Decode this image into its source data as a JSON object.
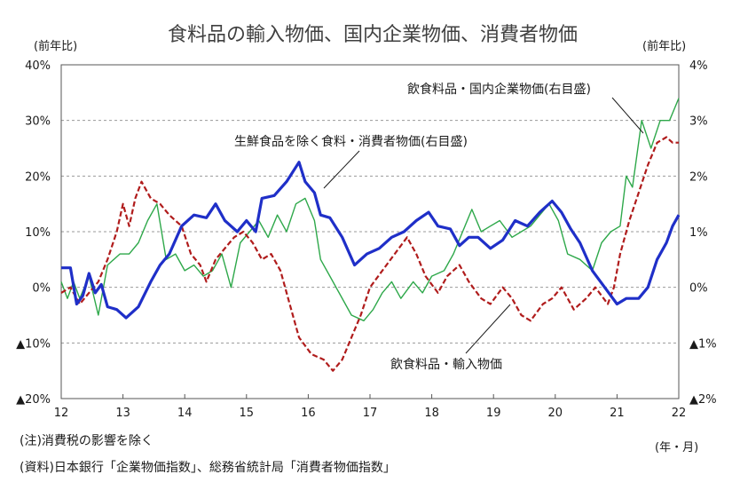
{
  "chart_data": {
    "type": "line",
    "title": "食料品の輸入物価、国内企業物価、消費者物価",
    "left_axis_unit": "(前年比)",
    "right_axis_unit": "(前年比)",
    "x_axis_unit": "(年・月)",
    "xlim": [
      2012.0,
      2022.0
    ],
    "ylim_left": [
      -20,
      40
    ],
    "ylim_right": [
      -2,
      4
    ],
    "x_ticks": [
      {
        "value": 2012,
        "label": "12"
      },
      {
        "value": 2013,
        "label": "13"
      },
      {
        "value": 2014,
        "label": "14"
      },
      {
        "value": 2015,
        "label": "15"
      },
      {
        "value": 2016,
        "label": "16"
      },
      {
        "value": 2017,
        "label": "17"
      },
      {
        "value": 2018,
        "label": "18"
      },
      {
        "value": 2019,
        "label": "19"
      },
      {
        "value": 2020,
        "label": "20"
      },
      {
        "value": 2021,
        "label": "21"
      },
      {
        "value": 2022,
        "label": "22"
      }
    ],
    "y_ticks_left": [
      {
        "value": 40,
        "label": "40%"
      },
      {
        "value": 30,
        "label": "30%"
      },
      {
        "value": 20,
        "label": "20%"
      },
      {
        "value": 10,
        "label": "10%"
      },
      {
        "value": 0,
        "label": "0%"
      },
      {
        "value": -10,
        "label": "▲10%"
      },
      {
        "value": -20,
        "label": "▲20%"
      }
    ],
    "y_ticks_right": [
      {
        "value": 4,
        "label": "4%"
      },
      {
        "value": 3,
        "label": "3%"
      },
      {
        "value": 2,
        "label": "2%"
      },
      {
        "value": 1,
        "label": "1%"
      },
      {
        "value": 0,
        "label": "0%"
      },
      {
        "value": -1,
        "label": "▲1%"
      },
      {
        "value": -2,
        "label": "▲2%"
      }
    ],
    "grid": "horizontal dashed",
    "series": [
      {
        "name": "飲食料品・輸入物価",
        "axis": "left",
        "color": "#1f2fc8",
        "style": "solid-thick",
        "points": [
          [
            2012.0,
            3.5
          ],
          [
            2012.15,
            3.5
          ],
          [
            2012.25,
            -3.0
          ],
          [
            2012.35,
            -1.5
          ],
          [
            2012.45,
            2.5
          ],
          [
            2012.55,
            -1.0
          ],
          [
            2012.65,
            0.5
          ],
          [
            2012.75,
            -3.5
          ],
          [
            2012.9,
            -4.0
          ],
          [
            2013.05,
            -5.5
          ],
          [
            2013.25,
            -3.5
          ],
          [
            2013.45,
            1.0
          ],
          [
            2013.6,
            4.0
          ],
          [
            2013.75,
            6.0
          ],
          [
            2013.95,
            11.0
          ],
          [
            2014.15,
            13.0
          ],
          [
            2014.35,
            12.5
          ],
          [
            2014.5,
            15.0
          ],
          [
            2014.65,
            12.0
          ],
          [
            2014.85,
            10.0
          ],
          [
            2015.0,
            12.0
          ],
          [
            2015.15,
            10.0
          ],
          [
            2015.25,
            16.0
          ],
          [
            2015.45,
            16.5
          ],
          [
            2015.65,
            19.0
          ],
          [
            2015.85,
            22.5
          ],
          [
            2015.95,
            19.0
          ],
          [
            2016.1,
            17.0
          ],
          [
            2016.2,
            13.0
          ],
          [
            2016.35,
            12.5
          ],
          [
            2016.55,
            9.0
          ],
          [
            2016.75,
            4.0
          ],
          [
            2016.95,
            6.0
          ],
          [
            2017.15,
            7.0
          ],
          [
            2017.35,
            9.0
          ],
          [
            2017.55,
            10.0
          ],
          [
            2017.75,
            12.0
          ],
          [
            2017.95,
            13.5
          ],
          [
            2018.1,
            11.0
          ],
          [
            2018.3,
            10.5
          ],
          [
            2018.45,
            7.5
          ],
          [
            2018.6,
            9.0
          ],
          [
            2018.75,
            9.0
          ],
          [
            2018.95,
            7.0
          ],
          [
            2019.15,
            8.5
          ],
          [
            2019.35,
            12.0
          ],
          [
            2019.55,
            11.0
          ],
          [
            2019.75,
            13.5
          ],
          [
            2019.95,
            15.5
          ],
          [
            2020.1,
            13.5
          ],
          [
            2020.25,
            10.5
          ],
          [
            2020.4,
            8.0
          ],
          [
            2020.6,
            3.0
          ],
          [
            2020.8,
            0.0
          ],
          [
            2021.0,
            -3.0
          ],
          [
            2021.15,
            -2.0
          ],
          [
            2021.35,
            -2.0
          ],
          [
            2021.5,
            0.0
          ],
          [
            2021.65,
            5.0
          ],
          [
            2021.8,
            8.0
          ],
          [
            2021.9,
            11.0
          ],
          [
            2022.0,
            13.0
          ]
        ]
      },
      {
        "name": "生鮮食品を除く食料・消費者物価(右目盛)",
        "axis": "right",
        "color": "#b01c1c",
        "style": "dashed",
        "points": [
          [
            2012.0,
            -0.1
          ],
          [
            2012.15,
            0.0
          ],
          [
            2012.3,
            -0.3
          ],
          [
            2012.45,
            -0.1
          ],
          [
            2012.6,
            0.1
          ],
          [
            2012.75,
            0.5
          ],
          [
            2012.9,
            1.0
          ],
          [
            2013.0,
            1.5
          ],
          [
            2013.1,
            1.1
          ],
          [
            2013.2,
            1.6
          ],
          [
            2013.3,
            1.9
          ],
          [
            2013.45,
            1.6
          ],
          [
            2013.6,
            1.5
          ],
          [
            2013.75,
            1.3
          ],
          [
            2013.95,
            1.1
          ],
          [
            2014.1,
            0.6
          ],
          [
            2014.25,
            0.4
          ],
          [
            2014.35,
            0.1
          ],
          [
            2014.5,
            0.5
          ],
          [
            2014.65,
            0.7
          ],
          [
            2014.8,
            0.9
          ],
          [
            2014.95,
            1.0
          ],
          [
            2015.1,
            0.8
          ],
          [
            2015.25,
            0.5
          ],
          [
            2015.4,
            0.6
          ],
          [
            2015.55,
            0.3
          ],
          [
            2015.7,
            -0.3
          ],
          [
            2015.85,
            -0.9
          ],
          [
            2016.05,
            -1.2
          ],
          [
            2016.25,
            -1.3
          ],
          [
            2016.4,
            -1.5
          ],
          [
            2016.55,
            -1.3
          ],
          [
            2016.7,
            -0.9
          ],
          [
            2016.85,
            -0.5
          ],
          [
            2017.0,
            0.0
          ],
          [
            2017.2,
            0.3
          ],
          [
            2017.4,
            0.6
          ],
          [
            2017.6,
            0.9
          ],
          [
            2017.75,
            0.6
          ],
          [
            2017.9,
            0.2
          ],
          [
            2018.1,
            -0.1
          ],
          [
            2018.25,
            0.2
          ],
          [
            2018.45,
            0.4
          ],
          [
            2018.6,
            0.1
          ],
          [
            2018.8,
            -0.2
          ],
          [
            2018.95,
            -0.3
          ],
          [
            2019.15,
            0.0
          ],
          [
            2019.3,
            -0.2
          ],
          [
            2019.45,
            -0.5
          ],
          [
            2019.6,
            -0.6
          ],
          [
            2019.8,
            -0.3
          ],
          [
            2019.95,
            -0.2
          ],
          [
            2020.1,
            0.0
          ],
          [
            2020.3,
            -0.4
          ],
          [
            2020.5,
            -0.2
          ],
          [
            2020.65,
            0.0
          ],
          [
            2020.85,
            -0.3
          ],
          [
            2020.95,
            0.0
          ],
          [
            2021.05,
            0.6
          ],
          [
            2021.2,
            1.2
          ],
          [
            2021.35,
            1.7
          ],
          [
            2021.5,
            2.2
          ],
          [
            2021.65,
            2.6
          ],
          [
            2021.8,
            2.7
          ],
          [
            2021.9,
            2.6
          ],
          [
            2022.0,
            2.6
          ]
        ]
      },
      {
        "name": "飲食料品・国内企業物価(右目盛)",
        "axis": "right",
        "color": "#2ea84a",
        "style": "solid-thin",
        "points": [
          [
            2012.0,
            0.1
          ],
          [
            2012.1,
            -0.2
          ],
          [
            2012.2,
            0.1
          ],
          [
            2012.3,
            -0.2
          ],
          [
            2012.45,
            0.2
          ],
          [
            2012.6,
            -0.5
          ],
          [
            2012.75,
            0.4
          ],
          [
            2012.95,
            0.6
          ],
          [
            2013.1,
            0.6
          ],
          [
            2013.25,
            0.8
          ],
          [
            2013.4,
            1.2
          ],
          [
            2013.55,
            1.5
          ],
          [
            2013.7,
            0.5
          ],
          [
            2013.85,
            0.6
          ],
          [
            2014.0,
            0.3
          ],
          [
            2014.15,
            0.4
          ],
          [
            2014.3,
            0.2
          ],
          [
            2014.45,
            0.3
          ],
          [
            2014.6,
            0.6
          ],
          [
            2014.75,
            0.0
          ],
          [
            2014.9,
            0.8
          ],
          [
            2015.05,
            1.0
          ],
          [
            2015.2,
            1.2
          ],
          [
            2015.35,
            0.9
          ],
          [
            2015.5,
            1.3
          ],
          [
            2015.65,
            1.0
          ],
          [
            2015.8,
            1.5
          ],
          [
            2015.95,
            1.6
          ],
          [
            2016.1,
            1.2
          ],
          [
            2016.2,
            0.5
          ],
          [
            2016.35,
            0.2
          ],
          [
            2016.5,
            -0.1
          ],
          [
            2016.7,
            -0.5
          ],
          [
            2016.9,
            -0.6
          ],
          [
            2017.05,
            -0.4
          ],
          [
            2017.2,
            -0.1
          ],
          [
            2017.35,
            0.1
          ],
          [
            2017.5,
            -0.2
          ],
          [
            2017.7,
            0.1
          ],
          [
            2017.85,
            -0.1
          ],
          [
            2018.0,
            0.2
          ],
          [
            2018.2,
            0.3
          ],
          [
            2018.35,
            0.6
          ],
          [
            2018.5,
            1.0
          ],
          [
            2018.65,
            1.4
          ],
          [
            2018.8,
            1.0
          ],
          [
            2018.95,
            1.1
          ],
          [
            2019.1,
            1.2
          ],
          [
            2019.3,
            0.9
          ],
          [
            2019.45,
            1.0
          ],
          [
            2019.6,
            1.1
          ],
          [
            2019.75,
            1.3
          ],
          [
            2019.9,
            1.5
          ],
          [
            2020.05,
            1.2
          ],
          [
            2020.2,
            0.6
          ],
          [
            2020.4,
            0.5
          ],
          [
            2020.6,
            0.3
          ],
          [
            2020.75,
            0.8
          ],
          [
            2020.9,
            1.0
          ],
          [
            2021.05,
            1.1
          ],
          [
            2021.15,
            2.0
          ],
          [
            2021.25,
            1.8
          ],
          [
            2021.4,
            3.0
          ],
          [
            2021.55,
            2.5
          ],
          [
            2021.7,
            3.0
          ],
          [
            2021.85,
            3.0
          ],
          [
            2022.0,
            3.4
          ]
        ]
      }
    ],
    "annotations": [
      {
        "text": "飲食料品・国内企業物価(右目盛)",
        "series": 2
      },
      {
        "text": "生鮮食品を除く食料・消費者物価(右目盛)",
        "series": 1
      },
      {
        "text": "飲食料品・輸入物価",
        "series": 0
      }
    ]
  },
  "notes": {
    "note": "(注)消費税の影響を除く",
    "source": "(資料)日本銀行「企業物価指数」、総務省統計局「消費者物価指数」"
  }
}
